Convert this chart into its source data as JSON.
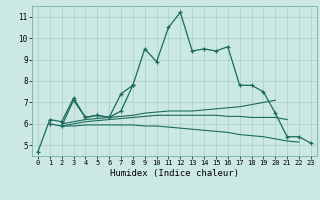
{
  "xlabel": "Humidex (Indice chaleur)",
  "background_color": "#cce8e4",
  "grid_color": "#aacfcb",
  "line_color": "#1a6b5a",
  "xlim": [
    -0.5,
    23.5
  ],
  "ylim": [
    4.5,
    11.5
  ],
  "xticks": [
    0,
    1,
    2,
    3,
    4,
    5,
    6,
    7,
    8,
    9,
    10,
    11,
    12,
    13,
    14,
    15,
    16,
    17,
    18,
    19,
    20,
    21,
    22,
    23
  ],
  "yticks": [
    5,
    6,
    7,
    8,
    9,
    10,
    11
  ],
  "series_with_markers": [
    [
      4.7,
      6.2,
      6.1,
      7.2,
      6.3,
      6.4,
      6.3,
      6.6,
      7.8,
      9.5,
      8.9,
      10.5,
      11.2,
      9.4,
      9.5,
      9.4,
      9.6,
      7.8,
      7.8,
      7.5,
      6.5,
      5.4,
      5.4,
      5.1
    ],
    [
      null,
      6.0,
      5.9,
      7.1,
      6.3,
      6.4,
      6.3,
      7.4,
      7.8,
      null,
      null,
      null,
      null,
      null,
      null,
      null,
      null,
      null,
      null,
      null,
      null,
      null,
      null,
      null
    ]
  ],
  "series_smooth": [
    [
      null,
      null,
      6.0,
      6.1,
      6.2,
      6.25,
      6.3,
      6.35,
      6.4,
      6.5,
      6.55,
      6.6,
      6.6,
      6.6,
      6.65,
      6.7,
      6.75,
      6.8,
      6.9,
      7.0,
      7.1,
      null,
      null,
      null
    ],
    [
      null,
      null,
      5.9,
      6.0,
      6.1,
      6.15,
      6.2,
      6.25,
      6.3,
      6.35,
      6.4,
      6.4,
      6.4,
      6.4,
      6.4,
      6.4,
      6.35,
      6.35,
      6.3,
      6.3,
      6.3,
      6.2,
      null,
      null
    ],
    [
      null,
      null,
      5.9,
      5.9,
      5.95,
      5.95,
      5.95,
      5.95,
      5.95,
      5.9,
      5.9,
      5.85,
      5.8,
      5.75,
      5.7,
      5.65,
      5.6,
      5.5,
      5.45,
      5.4,
      5.3,
      5.2,
      5.15,
      null
    ]
  ]
}
